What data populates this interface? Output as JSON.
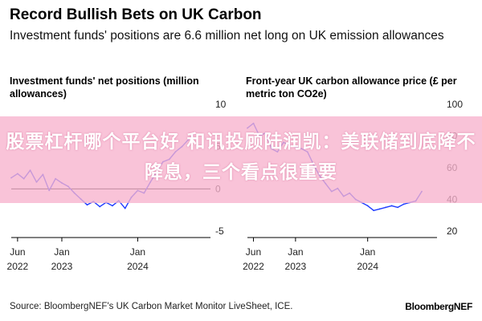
{
  "header": {
    "title": "Record Bullish Bets on UK Carbon",
    "subtitle": "Investment funds' positions are 6.6 million net long on UK emission allowances"
  },
  "banner": {
    "text": "股票杠杆哪个平台好 和讯投顾陆润凯：美联储到底降不降息，三个看点很重要"
  },
  "footer": {
    "source": "Source: BloombergNEF's UK Carbon Market Monitor LiveSheet, ICE.",
    "brand": "BloombergNEF"
  },
  "colors": {
    "line": "#1f3cff",
    "zero_line": "#000000",
    "banner": "#f7b2cd"
  },
  "chart_data": [
    {
      "type": "line",
      "title": "Investment funds' net positions (million allowances)",
      "ylim": [
        -5,
        10
      ],
      "y_ticks": [
        "10",
        "5",
        "0",
        "-5"
      ],
      "x_ticks": [
        {
          "label": [
            "Jun",
            "2022"
          ],
          "date": "2022-06"
        },
        {
          "label": [
            "Jan",
            "2023"
          ],
          "date": "2023-01"
        },
        {
          "label": [
            "Jan",
            "2024"
          ],
          "date": "2024-01"
        }
      ],
      "x_start": "2022-05",
      "x_end": "2024-12",
      "series": [
        {
          "values": [
            [
              "2022-05",
              1.3
            ],
            [
              "2022-06",
              1.8
            ],
            [
              "2022-07",
              1.2
            ],
            [
              "2022-08",
              2.2
            ],
            [
              "2022-09",
              0.8
            ],
            [
              "2022-10",
              1.7
            ],
            [
              "2022-11",
              -0.2
            ],
            [
              "2022-12",
              1.2
            ],
            [
              "2023-01",
              0.7
            ],
            [
              "2023-02",
              0.3
            ],
            [
              "2023-03",
              -0.5
            ],
            [
              "2023-04",
              -1.2
            ],
            [
              "2023-05",
              -1.9
            ],
            [
              "2023-06",
              -1.5
            ],
            [
              "2023-07",
              -2.1
            ],
            [
              "2023-08",
              -1.6
            ],
            [
              "2023-09",
              -2.0
            ],
            [
              "2023-10",
              -1.4
            ],
            [
              "2023-11",
              -2.3
            ],
            [
              "2023-12",
              -1.0
            ],
            [
              "2024-01",
              -0.2
            ],
            [
              "2024-02",
              -0.5
            ],
            [
              "2024-03",
              0.8
            ],
            [
              "2024-04",
              2.0
            ],
            [
              "2024-05",
              3.2
            ],
            [
              "2024-06",
              3.5
            ],
            [
              "2024-07",
              4.4
            ],
            [
              "2024-08",
              5.0
            ],
            [
              "2024-09",
              5.8
            ],
            [
              "2024-10",
              6.6
            ]
          ]
        }
      ],
      "zero_line": 0
    },
    {
      "type": "line",
      "title": "Front-year UK carbon allowance price (£ per metric ton CO2e)",
      "ylim": [
        20,
        100
      ],
      "y_ticks": [
        "100",
        "80",
        "60",
        "40",
        "20"
      ],
      "x_ticks": [
        {
          "label": [
            "Jun",
            "2022"
          ],
          "date": "2022-06"
        },
        {
          "label": [
            "Jan",
            "2023"
          ],
          "date": "2023-01"
        },
        {
          "label": [
            "Jan",
            "2024"
          ],
          "date": "2024-01"
        }
      ],
      "x_start": "2022-05",
      "x_end": "2024-12",
      "series": [
        {
          "values": [
            [
              "2022-05",
              85
            ],
            [
              "2022-06",
              88
            ],
            [
              "2022-07",
              80
            ],
            [
              "2022-08",
              82
            ],
            [
              "2022-09",
              72
            ],
            [
              "2022-10",
              70
            ],
            [
              "2022-11",
              76
            ],
            [
              "2022-12",
              74
            ],
            [
              "2023-01",
              73
            ],
            [
              "2023-02",
              72
            ],
            [
              "2023-03",
              70
            ],
            [
              "2023-04",
              62
            ],
            [
              "2023-05",
              55
            ],
            [
              "2023-06",
              50
            ],
            [
              "2023-07",
              45
            ],
            [
              "2023-08",
              47
            ],
            [
              "2023-09",
              42
            ],
            [
              "2023-10",
              44
            ],
            [
              "2023-11",
              40
            ],
            [
              "2023-12",
              38
            ],
            [
              "2024-01",
              36
            ],
            [
              "2024-02",
              33
            ],
            [
              "2024-03",
              34
            ],
            [
              "2024-04",
              35
            ],
            [
              "2024-05",
              36
            ],
            [
              "2024-06",
              35
            ],
            [
              "2024-07",
              37
            ],
            [
              "2024-08",
              38
            ],
            [
              "2024-09",
              39
            ],
            [
              "2024-10",
              45
            ]
          ]
        }
      ]
    }
  ]
}
